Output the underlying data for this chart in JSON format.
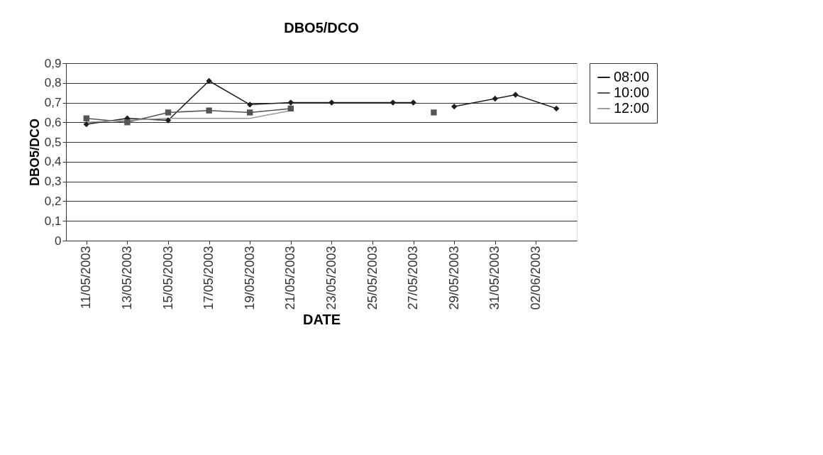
{
  "chart_data": {
    "type": "line",
    "title": "DBO5/DCO",
    "xlabel": "DATE",
    "ylabel": "DBO5/DCO",
    "x": [
      "2003-05-11",
      "2003-05-13",
      "2003-05-15",
      "2003-05-17",
      "2003-05-19",
      "2003-05-21",
      "2003-05-23",
      "2003-05-26",
      "2003-05-27",
      "2003-05-28",
      "2003-05-29",
      "2003-05-31",
      "2003-06-01",
      "2003-06-03"
    ],
    "series": [
      {
        "name": "08:00",
        "color": "#1e1e1e",
        "marker": "diamond",
        "values": [
          0.59,
          0.62,
          0.61,
          0.81,
          0.69,
          0.7,
          0.7,
          0.7,
          0.7,
          null,
          0.68,
          0.72,
          0.74,
          0.67
        ]
      },
      {
        "name": "10:00",
        "color": "#555555",
        "marker": "square",
        "values": [
          0.62,
          0.6,
          0.65,
          0.66,
          0.65,
          0.67,
          null,
          null,
          null,
          0.65,
          null,
          null,
          null,
          null
        ]
      },
      {
        "name": "12:00",
        "color": "#9a9a9a",
        "marker": "none",
        "values": [
          0.6,
          0.61,
          0.62,
          0.62,
          0.62,
          0.66,
          null,
          null,
          null,
          null,
          null,
          null,
          null,
          null
        ]
      }
    ],
    "xlim": [
      "2003-05-10",
      "2003-06-04"
    ],
    "xticks": [
      {
        "value": "2003-05-11",
        "label": "11/05/2003"
      },
      {
        "value": "2003-05-13",
        "label": "13/05/2003"
      },
      {
        "value": "2003-05-15",
        "label": "15/05/2003"
      },
      {
        "value": "2003-05-17",
        "label": "17/05/2003"
      },
      {
        "value": "2003-05-19",
        "label": "19/05/2003"
      },
      {
        "value": "2003-05-21",
        "label": "21/05/2003"
      },
      {
        "value": "2003-05-23",
        "label": "23/05/2003"
      },
      {
        "value": "2003-05-25",
        "label": "25/05/2003"
      },
      {
        "value": "2003-05-27",
        "label": "27/05/2003"
      },
      {
        "value": "2003-05-29",
        "label": "29/05/2003"
      },
      {
        "value": "2003-05-31",
        "label": "31/05/2003"
      },
      {
        "value": "2003-06-02",
        "label": "02/06/2003"
      }
    ],
    "ylim": [
      0,
      0.9
    ],
    "yticks": [
      {
        "value": 0,
        "label": "0"
      },
      {
        "value": 0.1,
        "label": "0,1"
      },
      {
        "value": 0.2,
        "label": "0,2"
      },
      {
        "value": 0.3,
        "label": "0,3"
      },
      {
        "value": 0.4,
        "label": "0,4"
      },
      {
        "value": 0.5,
        "label": "0,5"
      },
      {
        "value": 0.6,
        "label": "0,6"
      },
      {
        "value": 0.7,
        "label": "0,7"
      },
      {
        "value": 0.8,
        "label": "0,8"
      },
      {
        "value": 0.9,
        "label": "0,9"
      }
    ],
    "grid": "y",
    "legend": "right",
    "line_style": "solid"
  }
}
